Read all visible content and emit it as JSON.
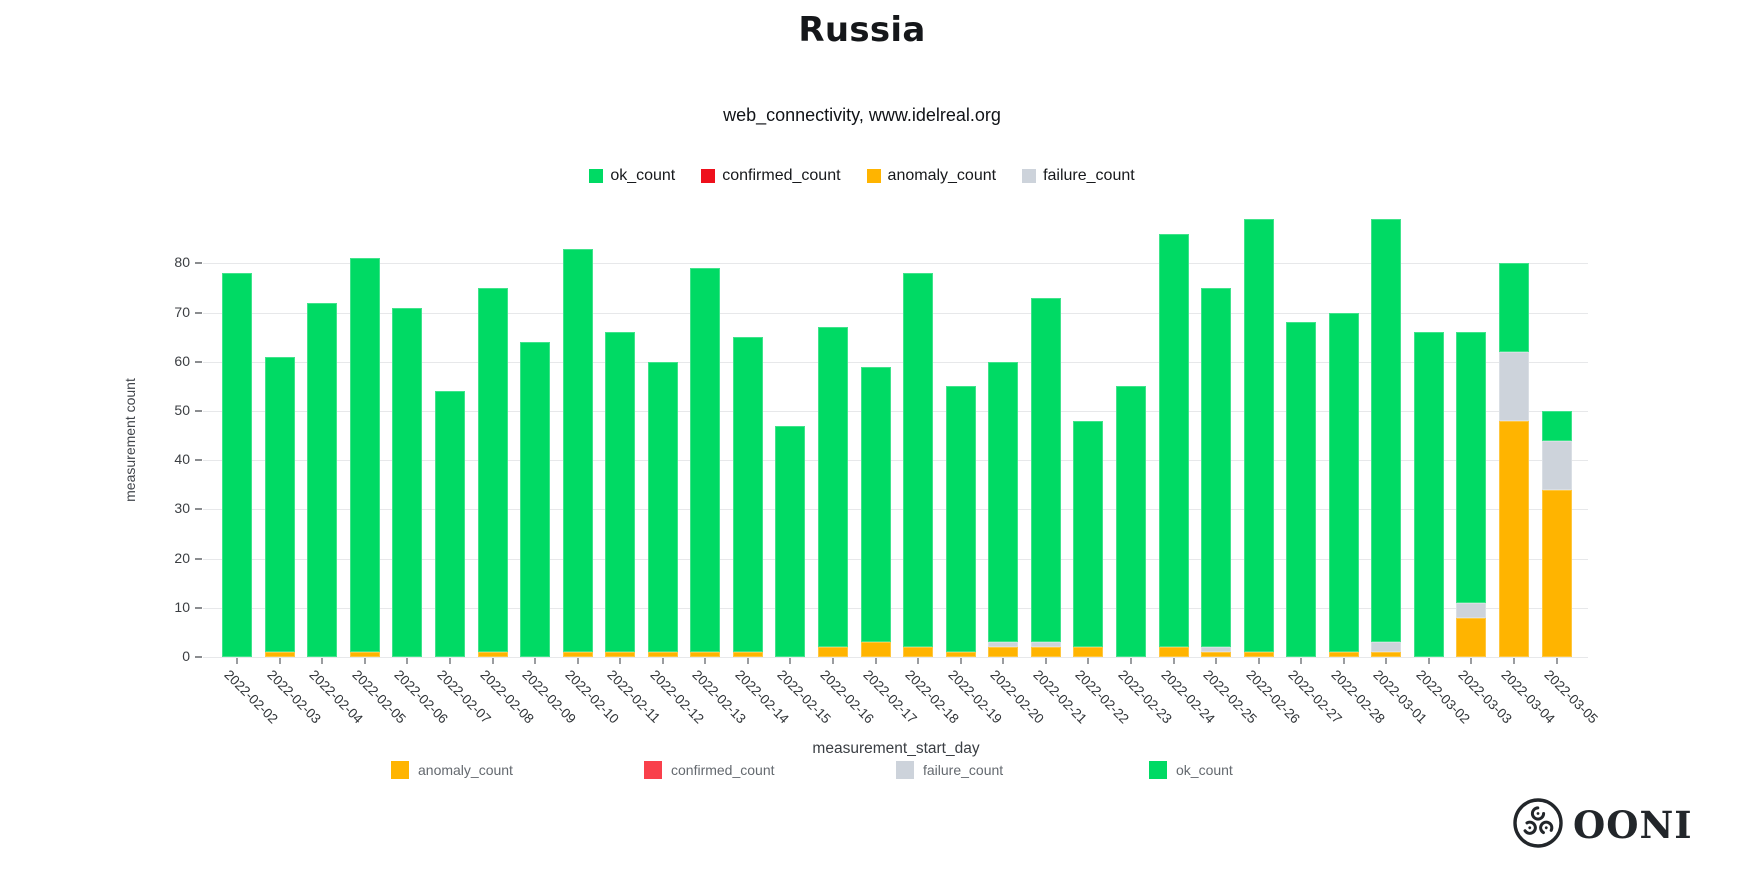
{
  "header": {
    "title": "Russia",
    "subtitle": "web_connectivity, www.idelreal.org"
  },
  "top_legend": [
    {
      "label": "ok_count",
      "color": "#00DA64"
    },
    {
      "label": "confirmed_count",
      "color": "#EE101C"
    },
    {
      "label": "anomaly_count",
      "color": "#FFB400"
    },
    {
      "label": "failure_count",
      "color": "#CDD3DB"
    }
  ],
  "bottom_legend": [
    {
      "label": "anomaly_count",
      "color": "#FFB400"
    },
    {
      "label": "confirmed_count",
      "color": "#F9404B"
    },
    {
      "label": "failure_count",
      "color": "#CDD3DB"
    },
    {
      "label": "ok_count",
      "color": "#00DA64"
    }
  ],
  "logo": {
    "wordmark": "OONI"
  },
  "chart_data": {
    "type": "bar",
    "stacked": true,
    "title": "Russia",
    "subtitle": "web_connectivity, www.idelreal.org",
    "xlabel": "measurement_start_day",
    "ylabel": "measurement count",
    "yticks": [
      0,
      10,
      20,
      30,
      40,
      50,
      60,
      70,
      80
    ],
    "ylim": [
      0,
      93
    ],
    "grid": true,
    "legend_position": "top-center",
    "categories": [
      "2022-02-02",
      "2022-02-03",
      "2022-02-04",
      "2022-02-05",
      "2022-02-06",
      "2022-02-07",
      "2022-02-08",
      "2022-02-09",
      "2022-02-10",
      "2022-02-11",
      "2022-02-12",
      "2022-02-13",
      "2022-02-14",
      "2022-02-15",
      "2022-02-16",
      "2022-02-17",
      "2022-02-18",
      "2022-02-19",
      "2022-02-20",
      "2022-02-21",
      "2022-02-22",
      "2022-02-23",
      "2022-02-24",
      "2022-02-25",
      "2022-02-26",
      "2022-02-27",
      "2022-02-28",
      "2022-03-01",
      "2022-03-02",
      "2022-03-03",
      "2022-03-04",
      "2022-03-05"
    ],
    "stack_order_bottom_to_top": [
      "anomaly_count",
      "confirmed_count",
      "failure_count",
      "ok_count"
    ],
    "series": [
      {
        "name": "anomaly_count",
        "color": "#FFB400",
        "values": [
          0,
          1,
          0,
          1,
          0,
          0,
          1,
          0,
          1,
          1,
          1,
          1,
          1,
          0,
          2,
          3,
          2,
          1,
          2,
          2,
          2,
          0,
          2,
          1,
          1,
          0,
          1,
          1,
          0,
          8,
          48,
          34
        ]
      },
      {
        "name": "confirmed_count",
        "color": "#EE101C",
        "values": [
          0,
          0,
          0,
          0,
          0,
          0,
          0,
          0,
          0,
          0,
          0,
          0,
          0,
          0,
          0,
          0,
          0,
          0,
          0,
          0,
          0,
          0,
          0,
          0,
          0,
          0,
          0,
          0,
          0,
          0,
          0,
          0
        ]
      },
      {
        "name": "failure_count",
        "color": "#CDD3DB",
        "values": [
          0,
          0,
          0,
          0,
          0,
          0,
          0,
          0,
          0,
          0,
          0,
          0,
          0,
          0,
          0,
          0,
          0,
          0,
          1,
          1,
          0,
          0,
          0,
          1,
          0,
          0,
          0,
          2,
          0,
          3,
          14,
          10
        ]
      },
      {
        "name": "ok_count",
        "color": "#00DA64",
        "values": [
          78,
          60,
          72,
          80,
          71,
          54,
          74,
          64,
          82,
          65,
          59,
          78,
          64,
          47,
          65,
          56,
          76,
          54,
          57,
          70,
          46,
          55,
          84,
          73,
          88,
          68,
          69,
          86,
          66,
          55,
          18,
          6
        ]
      }
    ],
    "totals": [
      78,
      61,
      72,
      81,
      71,
      54,
      75,
      64,
      83,
      66,
      60,
      79,
      65,
      47,
      67,
      59,
      78,
      55,
      60,
      73,
      48,
      55,
      86,
      75,
      89,
      68,
      70,
      89,
      66,
      66,
      80,
      50
    ]
  }
}
